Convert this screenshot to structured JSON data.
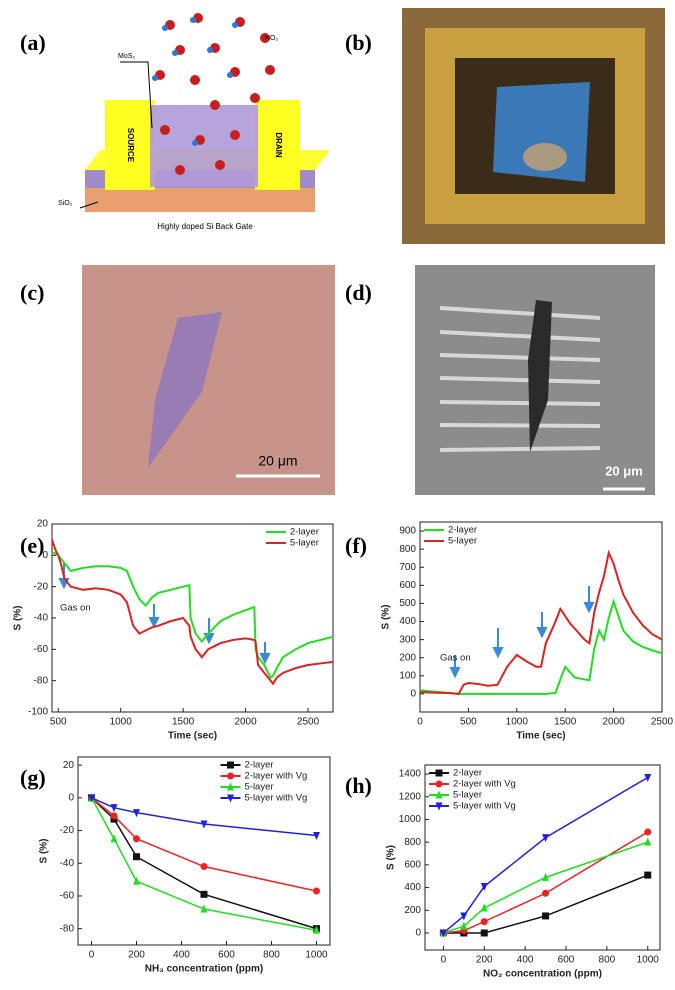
{
  "panels": [
    {
      "label": "(a)",
      "texts": [
        "NO₂",
        "MoS₂",
        "SOURCE",
        "DRAIN",
        "SiO₂",
        "Highly doped Si Back Gate"
      ]
    },
    {
      "label": "(b)"
    },
    {
      "label": "(c)",
      "scale": "20 μm"
    },
    {
      "label": "(d)",
      "scale": "20 μm"
    }
  ],
  "chart_data": [
    {
      "type": "line",
      "panel": "(e)",
      "xlabel": "Time (sec)",
      "ylabel": "S (%)",
      "annotation": "Gas on",
      "xlim": [
        450,
        2700
      ],
      "xticks": [
        500,
        1000,
        1500,
        2000,
        2500
      ],
      "ylim": [
        -100,
        20
      ],
      "yticks": [
        -100,
        -80,
        -60,
        -40,
        -20,
        0,
        20
      ],
      "legend": "upper right",
      "x": [
        450,
        480,
        500,
        520,
        550,
        600,
        700,
        800,
        900,
        1000,
        1050,
        1100,
        1150,
        1200,
        1250,
        1300,
        1400,
        1500,
        1550,
        1560,
        1600,
        1650,
        1700,
        1800,
        1900,
        2000,
        2070,
        2080,
        2100,
        2150,
        2200,
        2220,
        2250,
        2300,
        2400,
        2500,
        2600,
        2700
      ],
      "series": [
        {
          "name": "2-layer",
          "color": "#22dd22",
          "values": [
            2,
            1,
            0,
            -2,
            -5,
            -10,
            -8,
            -7,
            -7,
            -8,
            -10,
            -20,
            -28,
            -32,
            -27,
            -24,
            -22,
            -20,
            -19,
            -40,
            -50,
            -55,
            -50,
            -42,
            -38,
            -35,
            -33,
            -60,
            -65,
            -70,
            -78,
            -77,
            -72,
            -65,
            -60,
            -56,
            -54,
            -52
          ]
        },
        {
          "name": "5-layer",
          "color": "#dd2222",
          "values": [
            10,
            3,
            0,
            -5,
            -15,
            -20,
            -22,
            -21,
            -22,
            -25,
            -30,
            -45,
            -50,
            -48,
            -46,
            -45,
            -42,
            -40,
            -45,
            -52,
            -60,
            -65,
            -60,
            -56,
            -54,
            -53,
            -54,
            -55,
            -70,
            -75,
            -80,
            -82,
            -78,
            -75,
            -72,
            -70,
            -69,
            -68
          ]
        }
      ]
    },
    {
      "type": "line",
      "panel": "(f)",
      "xlabel": "Time (sec)",
      "ylabel": "S (%)",
      "annotation": "Gas on",
      "xlim": [
        0,
        2500
      ],
      "xticks": [
        0,
        500,
        1000,
        1500,
        2000,
        2500
      ],
      "ylim": [
        -100,
        950
      ],
      "yticks": [
        0,
        100,
        200,
        300,
        400,
        500,
        600,
        700,
        800,
        900
      ],
      "legend": "upper left",
      "x": [
        0,
        100,
        200,
        300,
        400,
        450,
        500,
        600,
        700,
        800,
        850,
        900,
        1000,
        1100,
        1200,
        1250,
        1300,
        1400,
        1450,
        1500,
        1550,
        1600,
        1700,
        1750,
        1800,
        1850,
        1900,
        1950,
        2000,
        2050,
        2100,
        2200,
        2300,
        2400,
        2500
      ],
      "series": [
        {
          "name": "2-layer",
          "color": "#22dd22",
          "values": [
            20,
            15,
            10,
            5,
            0,
            0,
            0,
            0,
            0,
            0,
            0,
            0,
            0,
            0,
            0,
            0,
            0,
            5,
            80,
            150,
            120,
            90,
            80,
            75,
            250,
            350,
            300,
            420,
            510,
            430,
            350,
            290,
            260,
            240,
            225
          ]
        },
        {
          "name": "5-layer",
          "color": "#dd2222",
          "values": [
            10,
            8,
            6,
            5,
            0,
            50,
            60,
            55,
            45,
            50,
            100,
            150,
            215,
            180,
            150,
            150,
            280,
            400,
            470,
            430,
            390,
            360,
            300,
            280,
            450,
            560,
            650,
            780,
            720,
            630,
            550,
            450,
            380,
            330,
            300
          ]
        }
      ]
    },
    {
      "type": "line",
      "panel": "(g)",
      "xlabel": "NH₃ concentration (ppm)",
      "ylabel": "S (%)",
      "xlim": [
        -60,
        1060
      ],
      "xticks": [
        0,
        200,
        400,
        600,
        800,
        1000
      ],
      "ylim": [
        -90,
        25
      ],
      "yticks": [
        -80,
        -60,
        -40,
        -20,
        0,
        20
      ],
      "legend": "upper right",
      "x": [
        0,
        100,
        200,
        500,
        1000
      ],
      "series": [
        {
          "name": "2-layer",
          "color": "#111111",
          "marker": "square",
          "values": [
            0,
            -13,
            -36,
            -59,
            -80
          ]
        },
        {
          "name": "2-layer with Vg",
          "color": "#ee2222",
          "marker": "circle",
          "values": [
            0,
            -11,
            -25,
            -42,
            -57
          ]
        },
        {
          "name": "5-layer",
          "color": "#22dd22",
          "marker": "triangle-up",
          "values": [
            0,
            -25,
            -51,
            -68,
            -81
          ]
        },
        {
          "name": "5-layer with Vg",
          "color": "#2222dd",
          "marker": "triangle-down",
          "values": [
            0,
            -6,
            -9,
            -16,
            -23
          ]
        }
      ]
    },
    {
      "type": "line",
      "panel": "(h)",
      "xlabel": "NO₂ concentration (ppm)",
      "ylabel": "S (%)",
      "xlim": [
        -90,
        1060
      ],
      "xticks": [
        0,
        200,
        400,
        600,
        800,
        1000
      ],
      "ylim": [
        -150,
        1480
      ],
      "yticks": [
        0,
        200,
        400,
        600,
        800,
        1000,
        1200,
        1400
      ],
      "legend": "upper left",
      "x": [
        0,
        100,
        200,
        500,
        1000
      ],
      "series": [
        {
          "name": "2-layer",
          "color": "#111111",
          "marker": "square",
          "values": [
            0,
            0,
            0,
            150,
            510
          ]
        },
        {
          "name": "2-layer with Vg",
          "color": "#ee2222",
          "marker": "circle",
          "values": [
            0,
            20,
            100,
            350,
            890
          ]
        },
        {
          "name": "5-layer",
          "color": "#22dd22",
          "marker": "triangle-up",
          "values": [
            0,
            60,
            220,
            490,
            800
          ]
        },
        {
          "name": "5-layer with Vg",
          "color": "#2222dd",
          "marker": "triangle-down",
          "values": [
            0,
            150,
            410,
            840,
            1370
          ]
        }
      ]
    }
  ]
}
